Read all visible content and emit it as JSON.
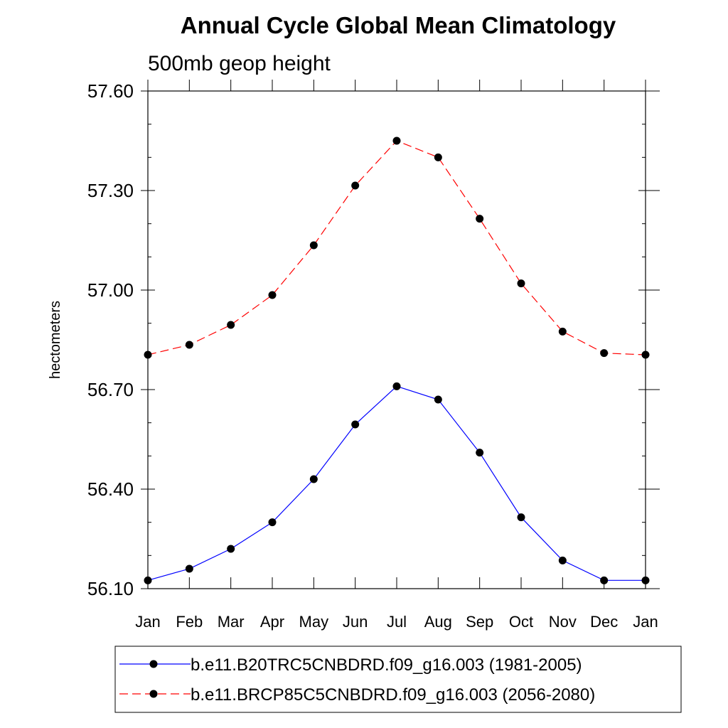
{
  "chart_data": {
    "type": "line",
    "title": "Annual Cycle Global Mean Climatology",
    "subtitle": "500mb geop height",
    "xlabel": "",
    "ylabel": "hectometers",
    "categories": [
      "Jan",
      "Feb",
      "Mar",
      "Apr",
      "May",
      "Jun",
      "Jul",
      "Aug",
      "Sep",
      "Oct",
      "Nov",
      "Dec",
      "Jan"
    ],
    "ylim": [
      56.1,
      57.6
    ],
    "yticks": [
      "56.10",
      "56.40",
      "56.70",
      "57.00",
      "57.30",
      "57.60"
    ],
    "grid": false,
    "legend_position": "bottom",
    "series": [
      {
        "name": "b.e11.B20TRC5CNBDRD.f09_g16.003 (1981-2005)",
        "color": "#0000ff",
        "line_style": "solid",
        "marker": "filled-circle",
        "values": [
          56.125,
          56.16,
          56.22,
          56.3,
          56.43,
          56.595,
          56.71,
          56.67,
          56.51,
          56.315,
          56.185,
          56.125,
          56.125
        ]
      },
      {
        "name": "b.e11.BRCP85C5CNBDRD.f09_g16.003 (2056-2080)",
        "color": "#ff0000",
        "line_style": "dashed",
        "marker": "filled-circle",
        "values": [
          56.805,
          56.835,
          56.895,
          56.985,
          57.135,
          57.315,
          57.45,
          57.4,
          57.215,
          57.02,
          56.875,
          56.81,
          56.805
        ]
      }
    ]
  }
}
